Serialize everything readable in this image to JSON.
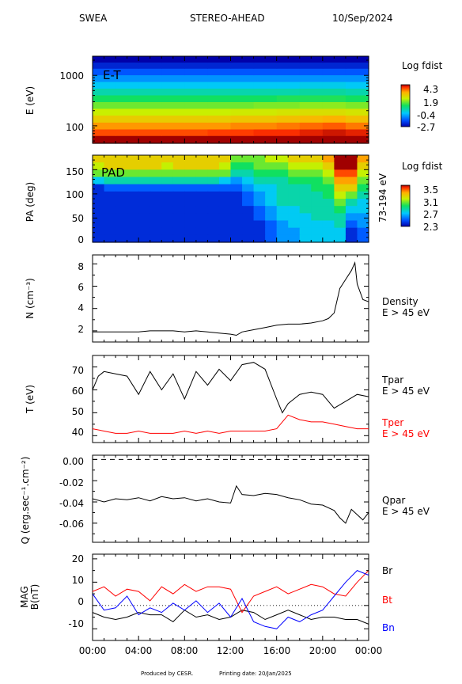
{
  "header": {
    "instrument": "SWEA",
    "spacecraft": "STEREO-AHEAD",
    "date": "10/Sep/2024"
  },
  "footer": {
    "produced_by": "Produced by CESR.",
    "printing_date": "Printing date: 20/Jan/2025"
  },
  "colors": {
    "black": "#000000",
    "red": "#ff0000",
    "blue": "#0000ff"
  },
  "chart_data": [
    {
      "type": "heatmap",
      "panel": "energy-time",
      "label": "E-T",
      "ylabel": "E (eV)",
      "yscale": "log",
      "yticks": [
        "1000",
        "100"
      ],
      "colorbar": {
        "title": "Log fdist",
        "ticks": [
          "4.3",
          "1.9",
          "-0.4",
          "-2.7"
        ],
        "range": [
          -2.7,
          4.3
        ]
      },
      "x_range": [
        "00:00",
        "24:00"
      ],
      "rows": [
        {
          "energy_eV": 55,
          "values": [
            4.3,
            4.3,
            4.3,
            4.3,
            4.3,
            4.4,
            4.4,
            4.4,
            4.5,
            4.5,
            4.6,
            4.6
          ]
        },
        {
          "energy_eV": 75,
          "values": [
            3.7,
            3.7,
            3.7,
            3.7,
            3.7,
            3.8,
            3.8,
            3.9,
            3.9,
            4.0,
            4.1,
            4.0
          ]
        },
        {
          "energy_eV": 100,
          "values": [
            3.2,
            3.2,
            3.2,
            3.2,
            3.2,
            3.2,
            3.3,
            3.3,
            3.4,
            3.5,
            3.6,
            3.4
          ]
        },
        {
          "energy_eV": 140,
          "values": [
            2.6,
            2.6,
            2.6,
            2.6,
            2.6,
            2.6,
            2.7,
            2.7,
            2.8,
            2.9,
            3.0,
            2.8
          ]
        },
        {
          "energy_eV": 190,
          "values": [
            2.0,
            2.0,
            2.0,
            2.0,
            2.0,
            2.0,
            2.1,
            2.1,
            2.2,
            2.3,
            2.3,
            2.2
          ]
        },
        {
          "energy_eV": 260,
          "values": [
            1.4,
            1.4,
            1.4,
            1.4,
            1.4,
            1.4,
            1.4,
            1.5,
            1.5,
            1.6,
            1.6,
            1.5
          ]
        },
        {
          "energy_eV": 350,
          "values": [
            0.8,
            0.8,
            0.8,
            0.8,
            0.8,
            0.8,
            0.8,
            0.8,
            0.9,
            0.9,
            0.9,
            0.8
          ]
        },
        {
          "energy_eV": 480,
          "values": [
            0.2,
            0.2,
            0.2,
            0.2,
            0.2,
            0.2,
            0.2,
            0.2,
            0.2,
            0.3,
            0.3,
            0.2
          ]
        },
        {
          "energy_eV": 650,
          "values": [
            -0.4,
            -0.4,
            -0.4,
            -0.4,
            -0.4,
            -0.4,
            -0.4,
            -0.4,
            -0.4,
            -0.3,
            -0.3,
            -0.4
          ]
        },
        {
          "energy_eV": 880,
          "values": [
            -1.0,
            -1.0,
            -1.0,
            -1.0,
            -1.0,
            -1.0,
            -1.0,
            -1.0,
            -1.0,
            -1.0,
            -1.0,
            -1.0
          ]
        },
        {
          "energy_eV": 1200,
          "values": [
            -1.6,
            -1.6,
            -1.6,
            -1.6,
            -1.6,
            -1.6,
            -1.6,
            -1.6,
            -1.6,
            -1.6,
            -1.6,
            -1.6
          ]
        },
        {
          "energy_eV": 1600,
          "values": [
            -2.2,
            -2.2,
            -2.2,
            -2.2,
            -2.2,
            -2.2,
            -2.2,
            -2.2,
            -2.2,
            -2.2,
            -2.2,
            -2.2
          ]
        },
        {
          "energy_eV": 2100,
          "values": [
            -2.7,
            -2.7,
            -2.7,
            -2.7,
            -2.7,
            -2.7,
            -2.7,
            -2.7,
            -2.7,
            -2.7,
            -2.7,
            -2.7
          ]
        }
      ]
    },
    {
      "type": "heatmap",
      "panel": "pitch-angle",
      "label": "PAD",
      "ylabel": "PA (deg)",
      "yticks": [
        "150",
        "100",
        "50",
        "0"
      ],
      "ylim": [
        0,
        180
      ],
      "right_label": "73-194 eV",
      "colorbar": {
        "title": "Log fdist",
        "ticks": [
          "3.5",
          "3.1",
          "2.7",
          "2.3"
        ],
        "range": [
          2.3,
          3.5
        ]
      },
      "pa_bins": [
        172.5,
        157.5,
        142.5,
        127.5,
        112.5,
        97.5,
        82.5,
        67.5,
        52.5,
        37.5,
        22.5,
        7.5
      ],
      "hours": [
        0.5,
        1.5,
        2.5,
        3.5,
        4.5,
        5.5,
        6.5,
        7.5,
        8.5,
        9.5,
        10.5,
        11.5,
        12.5,
        13.5,
        14.5,
        15.5,
        16.5,
        17.5,
        18.5,
        19.5,
        20.5,
        21.5,
        22.5,
        23.5
      ],
      "values": [
        [
          3.2,
          3.2,
          3.2,
          3.2,
          3.2,
          3.2,
          3.2,
          3.2,
          3.2,
          3.2,
          3.2,
          3.2,
          3.0,
          3.0,
          3.0,
          3.1,
          3.1,
          3.2,
          3.2,
          3.2,
          3.3,
          3.5,
          3.5,
          3.3
        ],
        [
          3.1,
          3.2,
          3.2,
          3.2,
          3.2,
          3.2,
          3.1,
          3.2,
          3.2,
          3.2,
          3.2,
          3.1,
          2.9,
          2.9,
          3.0,
          3.0,
          3.0,
          3.1,
          3.1,
          3.1,
          3.2,
          3.5,
          3.5,
          3.2
        ],
        [
          3.0,
          3.0,
          3.0,
          3.0,
          3.0,
          3.0,
          3.0,
          3.0,
          3.0,
          3.0,
          3.0,
          3.0,
          2.8,
          2.8,
          2.9,
          2.9,
          2.9,
          3.0,
          3.0,
          3.0,
          3.1,
          3.4,
          3.4,
          3.1
        ],
        [
          2.7,
          2.8,
          2.8,
          2.8,
          2.8,
          2.8,
          2.8,
          2.8,
          2.8,
          2.8,
          2.8,
          2.7,
          2.6,
          2.7,
          2.8,
          2.8,
          2.8,
          2.9,
          2.9,
          2.9,
          3.0,
          3.3,
          3.3,
          3.0
        ],
        [
          2.4,
          2.5,
          2.5,
          2.5,
          2.5,
          2.5,
          2.5,
          2.5,
          2.5,
          2.5,
          2.5,
          2.5,
          2.5,
          2.6,
          2.7,
          2.7,
          2.8,
          2.8,
          2.8,
          2.9,
          2.9,
          3.2,
          3.2,
          2.9
        ],
        [
          2.4,
          2.4,
          2.4,
          2.4,
          2.4,
          2.4,
          2.4,
          2.4,
          2.4,
          2.4,
          2.4,
          2.4,
          2.4,
          2.5,
          2.6,
          2.7,
          2.8,
          2.8,
          2.8,
          2.8,
          2.9,
          3.1,
          3.0,
          2.8
        ],
        [
          2.4,
          2.4,
          2.4,
          2.4,
          2.4,
          2.4,
          2.4,
          2.4,
          2.4,
          2.4,
          2.4,
          2.4,
          2.4,
          2.5,
          2.6,
          2.7,
          2.8,
          2.8,
          2.8,
          2.8,
          2.8,
          3.0,
          2.8,
          2.7
        ],
        [
          2.4,
          2.4,
          2.4,
          2.4,
          2.4,
          2.4,
          2.4,
          2.4,
          2.4,
          2.4,
          2.4,
          2.4,
          2.4,
          2.4,
          2.5,
          2.6,
          2.7,
          2.7,
          2.8,
          2.8,
          2.8,
          2.9,
          2.7,
          2.7
        ],
        [
          2.4,
          2.4,
          2.4,
          2.4,
          2.4,
          2.4,
          2.4,
          2.4,
          2.4,
          2.4,
          2.4,
          2.4,
          2.4,
          2.4,
          2.5,
          2.6,
          2.7,
          2.7,
          2.7,
          2.8,
          2.8,
          2.8,
          2.6,
          2.6
        ],
        [
          2.4,
          2.4,
          2.4,
          2.4,
          2.4,
          2.4,
          2.4,
          2.4,
          2.4,
          2.4,
          2.4,
          2.4,
          2.4,
          2.4,
          2.4,
          2.5,
          2.6,
          2.7,
          2.7,
          2.7,
          2.7,
          2.8,
          2.5,
          2.6
        ],
        [
          2.4,
          2.4,
          2.4,
          2.4,
          2.4,
          2.4,
          2.4,
          2.4,
          2.4,
          2.4,
          2.4,
          2.4,
          2.4,
          2.4,
          2.4,
          2.5,
          2.6,
          2.6,
          2.7,
          2.7,
          2.7,
          2.7,
          2.4,
          2.5
        ],
        [
          2.4,
          2.4,
          2.4,
          2.4,
          2.4,
          2.4,
          2.4,
          2.4,
          2.4,
          2.4,
          2.4,
          2.4,
          2.4,
          2.4,
          2.4,
          2.5,
          2.6,
          2.6,
          2.7,
          2.7,
          2.7,
          2.7,
          2.4,
          2.5
        ]
      ]
    },
    {
      "type": "line",
      "panel": "density",
      "ylabel": "N (cm⁻³)",
      "yticks": [
        "8",
        "6",
        "4",
        "2"
      ],
      "ylim": [
        1.0,
        8.8
      ],
      "legend": [
        "Density",
        "E > 45 eV"
      ],
      "series": [
        {
          "name": "Density",
          "color": "black",
          "x": [
            0,
            1,
            2,
            3,
            4,
            5,
            6,
            7,
            8,
            9,
            10,
            11,
            12,
            12.5,
            13,
            14,
            15,
            16,
            17,
            18,
            19,
            20,
            20.5,
            21,
            21.5,
            22,
            22.5,
            22.8,
            23,
            23.5,
            24
          ],
          "y": [
            1.9,
            1.9,
            1.9,
            1.9,
            1.9,
            2.0,
            2.0,
            2.0,
            1.9,
            2.0,
            1.9,
            1.8,
            1.7,
            1.6,
            1.9,
            2.1,
            2.3,
            2.5,
            2.6,
            2.6,
            2.7,
            2.9,
            3.1,
            3.6,
            5.8,
            6.6,
            7.4,
            8.1,
            6.2,
            4.8,
            4.6
          ]
        }
      ]
    },
    {
      "type": "line",
      "panel": "temperature",
      "ylabel": "T (eV)",
      "yticks": [
        "70",
        "60",
        "50",
        "40"
      ],
      "ylim": [
        37,
        75
      ],
      "legend": [
        [
          "Tpar",
          "E > 45 eV"
        ],
        [
          "Tper",
          "E > 45 eV"
        ]
      ],
      "series": [
        {
          "name": "Tpar",
          "color": "black",
          "x": [
            0,
            0.5,
            1,
            2,
            3,
            4,
            5,
            6,
            7,
            8,
            9,
            10,
            11,
            12,
            13,
            14,
            15,
            16,
            16.5,
            17,
            18,
            19,
            20,
            21,
            22,
            23,
            24
          ],
          "y": [
            60,
            66,
            68,
            67,
            66,
            58,
            68,
            60,
            67,
            56,
            68,
            62,
            69,
            64,
            71,
            72,
            69,
            56,
            50,
            54,
            58,
            59,
            58,
            52,
            55,
            58,
            57
          ]
        },
        {
          "name": "Tper",
          "color": "red",
          "x": [
            0,
            1,
            2,
            3,
            4,
            5,
            6,
            7,
            8,
            9,
            10,
            11,
            12,
            13,
            14,
            15,
            16,
            17,
            18,
            19,
            20,
            21,
            22,
            23,
            24
          ],
          "y": [
            43,
            42,
            41,
            41,
            42,
            41,
            41,
            41,
            42,
            41,
            42,
            41,
            42,
            42,
            42,
            42,
            43,
            49,
            47,
            46,
            46,
            45,
            44,
            43,
            43
          ]
        }
      ]
    },
    {
      "type": "line",
      "panel": "heat-flux",
      "ylabel": "Q (erg.sec⁻¹.cm⁻²)",
      "yticks": [
        "0.00",
        "-0.02",
        "-0.04",
        "-0.06"
      ],
      "ylim": [
        -0.078,
        0.004
      ],
      "legend": [
        "Qpar",
        "E > 45 eV"
      ],
      "series": [
        {
          "name": "Qpar",
          "color": "black",
          "x": [
            0,
            1,
            2,
            3,
            4,
            5,
            6,
            7,
            8,
            9,
            10,
            11,
            12,
            12.5,
            13,
            14,
            15,
            16,
            17,
            18,
            19,
            20,
            21,
            21.5,
            22,
            22.5,
            23,
            23.5,
            24
          ],
          "y": [
            -0.037,
            -0.04,
            -0.037,
            -0.038,
            -0.036,
            -0.039,
            -0.035,
            -0.037,
            -0.036,
            -0.039,
            -0.037,
            -0.04,
            -0.041,
            -0.025,
            -0.033,
            -0.034,
            -0.032,
            -0.033,
            -0.036,
            -0.038,
            -0.042,
            -0.043,
            -0.048,
            -0.055,
            -0.06,
            -0.047,
            -0.052,
            -0.057,
            -0.05
          ]
        }
      ]
    },
    {
      "type": "line",
      "panel": "magnetic-field",
      "ylabel": "B(nT)",
      "ylabel2": "MAG",
      "yticks": [
        "20",
        "10",
        "0",
        "-10"
      ],
      "ylim": [
        -15,
        22
      ],
      "xticks": [
        "00:00",
        "04:00",
        "08:00",
        "12:00",
        "16:00",
        "20:00",
        "00:00"
      ],
      "series": [
        {
          "name": "Br",
          "color": "black",
          "x": [
            0,
            1,
            2,
            3,
            4,
            5,
            6,
            7,
            8,
            9,
            10,
            11,
            12,
            13,
            14,
            15,
            16,
            17,
            18,
            19,
            20,
            21,
            22,
            23,
            24
          ],
          "y": [
            -3,
            -5,
            -6,
            -5,
            -3,
            -4,
            -4,
            -7,
            -2,
            -5,
            -4,
            -6,
            -5,
            -2,
            -3,
            -6,
            -4,
            -2,
            -4,
            -6,
            -5,
            -5,
            -6,
            -6,
            -8
          ]
        },
        {
          "name": "Bt",
          "color": "red",
          "x": [
            0,
            1,
            2,
            3,
            4,
            5,
            6,
            7,
            8,
            9,
            10,
            11,
            12,
            13,
            14,
            15,
            16,
            17,
            18,
            19,
            20,
            21,
            22,
            23,
            24
          ],
          "y": [
            6,
            8,
            4,
            7,
            6,
            2,
            8,
            5,
            9,
            6,
            8,
            8,
            7,
            -3,
            4,
            6,
            8,
            5,
            7,
            9,
            8,
            5,
            4,
            10,
            15
          ]
        },
        {
          "name": "Bn",
          "color": "blue",
          "x": [
            0,
            1,
            2,
            3,
            4,
            5,
            6,
            7,
            8,
            9,
            10,
            11,
            12,
            13,
            14,
            15,
            16,
            17,
            18,
            19,
            20,
            21,
            22,
            23,
            24
          ],
          "y": [
            5,
            -2,
            -1,
            4,
            -4,
            -1,
            -3,
            1,
            -2,
            2,
            -3,
            1,
            -5,
            3,
            -7,
            -9,
            -10,
            -5,
            -7,
            -4,
            -2,
            4,
            10,
            15,
            13
          ]
        }
      ]
    }
  ]
}
